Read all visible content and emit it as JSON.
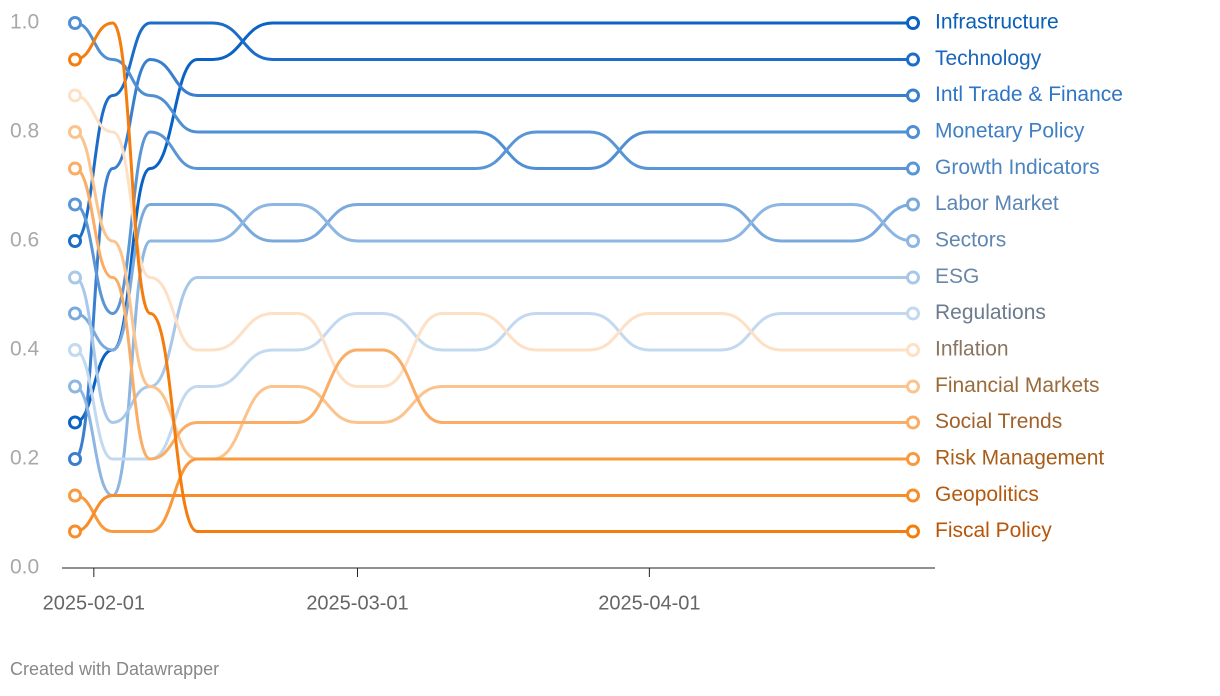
{
  "chart_data": {
    "type": "line",
    "x": [
      "2025-01-30",
      "2025-02-03",
      "2025-02-07",
      "2025-02-12",
      "2025-02-20",
      "2025-03-01",
      "2025-03-10",
      "2025-03-20",
      "2025-04-01",
      "2025-04-15",
      "2025-04-29"
    ],
    "xlim": [
      "2025-01-30",
      "2025-04-29"
    ],
    "xticks": [
      "2025-02-01",
      "2025-03-01",
      "2025-04-01"
    ],
    "ylim": [
      0,
      1
    ],
    "yticks": [
      {
        "value": 0,
        "label": "0.0"
      },
      0.2,
      0.4,
      0.6,
      0.8,
      {
        "value": 1,
        "label": "1.0"
      }
    ],
    "grid": false,
    "footer": "Created with Datawrapper",
    "series": [
      {
        "name": "Infrastructure",
        "color": "#0a63c4",
        "label_color": "#0a5fb8",
        "values": [
          0.267,
          0.4,
          0.733,
          0.933,
          1,
          1,
          1,
          1,
          1,
          1,
          1
        ]
      },
      {
        "name": "Technology",
        "color": "#1c6dc8",
        "label_color": "#1a66bb",
        "values": [
          0.6,
          0.867,
          1,
          1,
          0.933,
          0.933,
          0.933,
          0.933,
          0.933,
          0.933,
          0.933
        ]
      },
      {
        "name": "Intl Trade & Finance",
        "color": "#3a7fcf",
        "label_color": "#2f75c4",
        "values": [
          0.2,
          0.733,
          0.933,
          0.867,
          0.867,
          0.867,
          0.867,
          0.867,
          0.867,
          0.867,
          0.867
        ]
      },
      {
        "name": "Monetary Policy",
        "color": "#4f8fd4",
        "label_color": "#3f7fc4",
        "values": [
          1,
          0.933,
          0.867,
          0.8,
          0.8,
          0.8,
          0.8,
          0.733,
          0.8,
          0.8,
          0.8
        ]
      },
      {
        "name": "Growth Indicators",
        "color": "#5a96d6",
        "label_color": "#4c84bf",
        "values": [
          0.667,
          0.467,
          0.8,
          0.733,
          0.733,
          0.733,
          0.733,
          0.8,
          0.733,
          0.733,
          0.733
        ]
      },
      {
        "name": "Labor Market",
        "color": "#7aaadd",
        "label_color": "#5a86b5",
        "values": [
          0.467,
          0.4,
          0.667,
          0.667,
          0.6,
          0.667,
          0.667,
          0.667,
          0.667,
          0.6,
          0.667
        ]
      },
      {
        "name": "Sectors",
        "color": "#8db7e2",
        "label_color": "#5f87b0",
        "values": [
          0.333,
          0.133,
          0.6,
          0.6,
          0.667,
          0.6,
          0.6,
          0.6,
          0.6,
          0.667,
          0.6
        ]
      },
      {
        "name": "ESG",
        "color": "#a8c8ea",
        "label_color": "#6a88a6",
        "values": [
          0.533,
          0.267,
          0.333,
          0.533,
          0.533,
          0.533,
          0.533,
          0.533,
          0.533,
          0.533,
          0.533
        ]
      },
      {
        "name": "Regulations",
        "color": "#c2d9f0",
        "label_color": "#6b7b8c",
        "values": [
          0.4,
          0.2,
          0.2,
          0.333,
          0.4,
          0.467,
          0.4,
          0.467,
          0.4,
          0.467,
          0.467
        ]
      },
      {
        "name": "Inflation",
        "color": "#fde0c5",
        "label_color": "#8a7560",
        "values": [
          0.867,
          0.8,
          0.533,
          0.4,
          0.467,
          0.333,
          0.467,
          0.4,
          0.467,
          0.4,
          0.4
        ]
      },
      {
        "name": "Financial Markets",
        "color": "#fbc48e",
        "label_color": "#9a6a3a",
        "values": [
          0.8,
          0.6,
          0.333,
          0.2,
          0.333,
          0.267,
          0.333,
          0.333,
          0.333,
          0.333,
          0.333
        ]
      },
      {
        "name": "Social Trends",
        "color": "#f9ad66",
        "label_color": "#a0622a",
        "values": [
          0.733,
          0.533,
          0.2,
          0.267,
          0.267,
          0.4,
          0.267,
          0.267,
          0.267,
          0.267,
          0.267
        ]
      },
      {
        "name": "Risk Management",
        "color": "#f89a3d",
        "label_color": "#a95d18",
        "values": [
          0.133,
          0.067,
          0.067,
          0.2,
          0.2,
          0.2,
          0.2,
          0.2,
          0.2,
          0.2,
          0.2
        ]
      },
      {
        "name": "Geopolitics",
        "color": "#f78d2a",
        "label_color": "#b35a10",
        "values": [
          0.067,
          0.133,
          0.133,
          0.133,
          0.133,
          0.133,
          0.133,
          0.133,
          0.133,
          0.133,
          0.133
        ]
      },
      {
        "name": "Fiscal Policy",
        "color": "#f47d0d",
        "label_color": "#b85508",
        "values": [
          0.933,
          1,
          0.467,
          0.067,
          0.067,
          0.067,
          0.067,
          0.067,
          0.067,
          0.067,
          0.067
        ]
      }
    ]
  }
}
